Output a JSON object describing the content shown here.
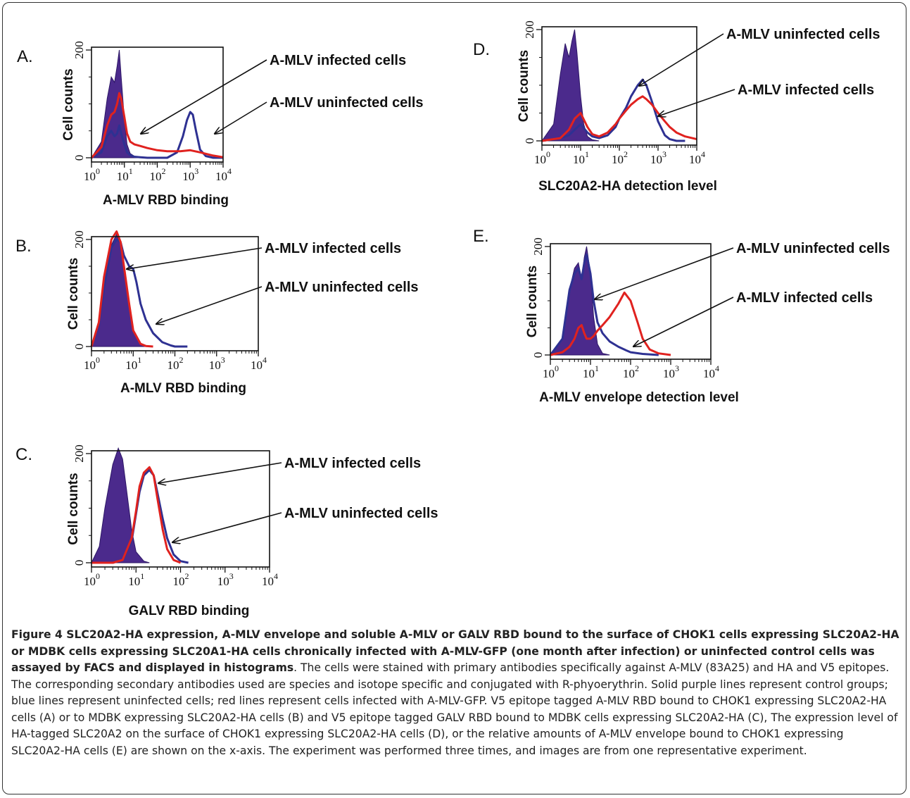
{
  "caption": {
    "title": "Figure 4 SLC20A2-HA expression, A-MLV envelope and soluble A-MLV or GALV RBD bound to the surface of CHOK1 cells expressing SLC20A2-HA or MDBK cells expressing SLC20A1-HA cells chronically infected with A-MLV-GFP (one month after infection) or uninfected control cells was assayed by FACS and displayed in histograms",
    "body": ". The cells were stained with primary antibodies specifically against A-MLV (83A25) and HA and V5 epitopes. The corresponding secondary antibodies used are species and isotope specific and conjugated with R-phyoerythrin. Solid purple lines represent control groups; blue lines represent uninfected cells; red lines represent cells infected with A-MLV-GFP. V5 epitope tagged A-MLV RBD bound to CHOK1 expressing SLC20A2-HA cells (A) or to MDBK expressing SLC20A2-HA cells (B) and V5 epitope tagged GALV RBD bound to MDBK cells expressing SLC20A2-HA (C), The expression level of HA-tagged SLC20A2 on the surface of CHOK1 expressing SLC20A2-HA cells (D), or the relative amounts of A-MLV envelope bound to CHOK1 expressing SLC20A2-HA cells (E) are shown on the x-axis. The experiment was performed three times, and images are from one representative experiment."
  },
  "colors": {
    "control": "#4b2a8c",
    "uninfected": "#2e3192",
    "infected": "#e0221f"
  },
  "chart_data": [
    {
      "panel": "A.",
      "type": "area",
      "ylabel": "Cell counts",
      "xlabel": "A-MLV RBD binding",
      "xscale": "log",
      "xlim": [
        1,
        10000
      ],
      "ylim": [
        0,
        200
      ],
      "x_ticks": [
        "10",
        "0",
        "10",
        "1",
        "10",
        "2",
        "10",
        "3",
        "10",
        "4"
      ],
      "y_ticks": [
        "0",
        "200"
      ],
      "annotations": [
        "A-MLV infected cells",
        "A-MLV uninfected cells"
      ],
      "series": [
        {
          "role": "control",
          "x": [
            1,
            2,
            3,
            4,
            5,
            6,
            7,
            8,
            10,
            12,
            15,
            20,
            30,
            50
          ],
          "y": [
            0,
            30,
            110,
            150,
            140,
            170,
            200,
            150,
            70,
            25,
            8,
            3,
            0,
            0
          ]
        },
        {
          "role": "uninfected",
          "x": [
            1,
            2,
            3,
            4,
            5,
            6,
            7,
            8,
            10,
            12,
            15,
            20,
            30,
            50,
            100,
            200,
            400,
            600,
            800,
            1000,
            1200,
            1500,
            2000,
            3000,
            5000,
            10000
          ],
          "y": [
            0,
            10,
            40,
            50,
            40,
            45,
            60,
            45,
            25,
            10,
            5,
            2,
            1,
            0,
            0,
            0,
            10,
            40,
            70,
            85,
            80,
            50,
            15,
            3,
            0,
            0
          ]
        },
        {
          "role": "infected",
          "x": [
            1,
            2,
            3,
            4,
            5,
            6,
            7,
            8,
            10,
            12,
            15,
            20,
            30,
            50,
            100,
            200,
            500,
            1000,
            2000,
            5000,
            10000
          ],
          "y": [
            0,
            20,
            60,
            80,
            85,
            100,
            120,
            110,
            75,
            45,
            30,
            25,
            22,
            18,
            14,
            12,
            12,
            14,
            10,
            4,
            1
          ]
        }
      ]
    },
    {
      "panel": "B.",
      "type": "area",
      "ylabel": "Cell counts",
      "xlabel": "A-MLV RBD binding",
      "xscale": "log",
      "xlim": [
        1,
        10000
      ],
      "ylim": [
        0,
        200
      ],
      "x_ticks": [
        "10",
        "0",
        "10",
        "1",
        "10",
        "2",
        "10",
        "3",
        "10",
        "4"
      ],
      "y_ticks": [
        "0",
        "200"
      ],
      "annotations": [
        "A-MLV infected cells",
        "A-MLV uninfected cells"
      ],
      "series": [
        {
          "role": "control",
          "x": [
            1,
            1.5,
            2,
            3,
            4,
            5,
            6,
            8,
            10,
            15,
            20,
            30
          ],
          "y": [
            0,
            40,
            120,
            190,
            210,
            190,
            150,
            80,
            30,
            5,
            1,
            0
          ]
        },
        {
          "role": "uninfected",
          "x": [
            1,
            1.5,
            2,
            3,
            4,
            5,
            6,
            8,
            10,
            12,
            15,
            20,
            30,
            50,
            80,
            100,
            200
          ],
          "y": [
            0,
            40,
            110,
            185,
            200,
            195,
            170,
            150,
            145,
            120,
            80,
            50,
            25,
            8,
            2,
            0,
            0
          ]
        },
        {
          "role": "infected",
          "x": [
            1,
            1.5,
            2,
            3,
            4,
            5,
            6,
            8,
            10,
            15,
            20,
            30
          ],
          "y": [
            0,
            45,
            130,
            200,
            215,
            195,
            150,
            80,
            30,
            5,
            1,
            0
          ]
        }
      ]
    },
    {
      "panel": "C.",
      "type": "area",
      "ylabel": "Cell counts",
      "xlabel": "GALV RBD binding",
      "xscale": "log",
      "xlim": [
        1,
        10000
      ],
      "ylim": [
        0,
        200
      ],
      "x_ticks": [
        "10",
        "0",
        "10",
        "1",
        "10",
        "2",
        "10",
        "3",
        "10",
        "4"
      ],
      "y_ticks": [
        "0",
        "200"
      ],
      "annotations": [
        "A-MLV infected cells",
        "A-MLV uninfected cells"
      ],
      "series": [
        {
          "role": "control",
          "x": [
            1,
            1.5,
            2,
            3,
            4,
            5,
            6,
            8,
            10,
            15,
            20
          ],
          "y": [
            0,
            30,
            100,
            180,
            210,
            190,
            140,
            60,
            20,
            3,
            0
          ]
        },
        {
          "role": "uninfected",
          "x": [
            1,
            3,
            5,
            8,
            10,
            12,
            15,
            20,
            25,
            30,
            40,
            50,
            70,
            100,
            150
          ],
          "y": [
            0,
            0,
            5,
            40,
            90,
            130,
            160,
            170,
            160,
            130,
            80,
            45,
            15,
            3,
            0
          ]
        },
        {
          "role": "infected",
          "x": [
            1,
            3,
            5,
            8,
            10,
            12,
            15,
            20,
            25,
            30,
            40,
            50,
            70,
            100
          ],
          "y": [
            0,
            0,
            5,
            45,
            95,
            140,
            165,
            175,
            160,
            120,
            60,
            25,
            5,
            0
          ]
        }
      ]
    },
    {
      "panel": "D.",
      "type": "area",
      "ylabel": "Cell counts",
      "xlabel": "SLC20A2-HA detection level",
      "xscale": "log",
      "xlim": [
        1,
        10000
      ],
      "ylim": [
        0,
        200
      ],
      "x_ticks": [
        "10",
        "0",
        "10",
        "1",
        "10",
        "2",
        "10",
        "3",
        "10",
        "4"
      ],
      "y_ticks": [
        "0",
        "200"
      ],
      "annotations": [
        "A-MLV uninfected cells",
        "A-MLV infected cells"
      ],
      "series": [
        {
          "role": "control",
          "x": [
            1,
            2,
            3,
            4,
            5,
            6,
            7,
            8,
            10,
            12,
            15,
            20,
            30
          ],
          "y": [
            0,
            30,
            120,
            175,
            150,
            180,
            200,
            160,
            80,
            30,
            8,
            2,
            0
          ]
        },
        {
          "role": "uninfected",
          "x": [
            1,
            3,
            5,
            7,
            10,
            15,
            20,
            30,
            50,
            80,
            100,
            150,
            200,
            300,
            400,
            500,
            700,
            1000,
            1500,
            2000,
            3000,
            5000
          ],
          "y": [
            0,
            5,
            10,
            20,
            30,
            15,
            8,
            5,
            10,
            25,
            40,
            60,
            80,
            100,
            110,
            100,
            70,
            35,
            10,
            3,
            0,
            0
          ]
        },
        {
          "role": "infected",
          "x": [
            1,
            3,
            5,
            7,
            10,
            15,
            20,
            30,
            50,
            80,
            100,
            150,
            200,
            300,
            400,
            500,
            700,
            1000,
            1500,
            2000,
            3000,
            5000,
            10000
          ],
          "y": [
            0,
            5,
            20,
            40,
            50,
            25,
            12,
            8,
            15,
            30,
            40,
            55,
            65,
            75,
            80,
            75,
            65,
            50,
            35,
            25,
            15,
            8,
            3
          ]
        }
      ]
    },
    {
      "panel": "E.",
      "type": "area",
      "ylabel": "Cell counts",
      "xlabel": "A-MLV envelope detection level",
      "xscale": "log",
      "xlim": [
        1,
        10000
      ],
      "ylim": [
        0,
        200
      ],
      "x_ticks": [
        "10",
        "0",
        "10",
        "1",
        "10",
        "2",
        "10",
        "3",
        "10",
        "4"
      ],
      "y_ticks": [
        "0",
        "200"
      ],
      "annotations": [
        "A-MLV uninfected cells",
        "A-MLV infected cells"
      ],
      "series": [
        {
          "role": "control",
          "x": [
            1,
            2,
            3,
            4,
            5,
            6,
            7,
            8,
            10,
            12,
            15,
            20,
            30
          ],
          "y": [
            0,
            30,
            120,
            160,
            170,
            140,
            180,
            200,
            150,
            70,
            20,
            3,
            0
          ]
        },
        {
          "role": "uninfected",
          "x": [
            1,
            2,
            3,
            4,
            5,
            6,
            7,
            8,
            10,
            12,
            15,
            20,
            30,
            50,
            80,
            100,
            200,
            500
          ],
          "y": [
            0,
            30,
            120,
            150,
            160,
            140,
            170,
            185,
            150,
            100,
            60,
            40,
            25,
            15,
            8,
            5,
            2,
            0
          ]
        },
        {
          "role": "infected",
          "x": [
            1,
            2,
            3,
            4,
            5,
            6,
            7,
            8,
            10,
            12,
            15,
            20,
            30,
            50,
            70,
            100,
            150,
            200,
            300,
            500,
            1000
          ],
          "y": [
            0,
            5,
            15,
            30,
            50,
            55,
            40,
            30,
            30,
            35,
            45,
            55,
            70,
            95,
            115,
            100,
            60,
            30,
            10,
            3,
            0
          ]
        }
      ]
    }
  ]
}
